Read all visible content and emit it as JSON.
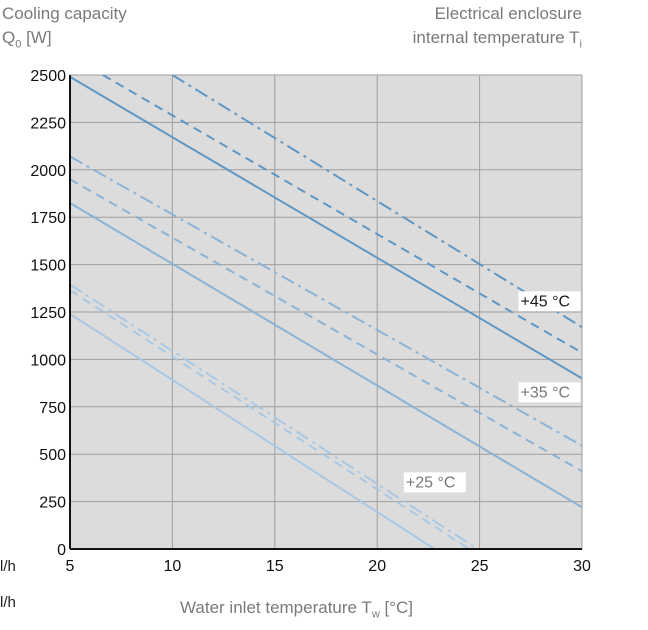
{
  "header": {
    "left_line1": "Cooling capacity",
    "left_line2_main": "Q",
    "left_line2_sub": "0",
    "left_line2_unit": " [W]",
    "right_line1": "Electrical enclosure",
    "right_line2_main": "internal temperature T",
    "right_line2_sub": "i"
  },
  "axis": {
    "xlabel_main": "Water inlet temperature T",
    "xlabel_sub": "w",
    "xlabel_unit": " [°C]",
    "unit_row1": "l/h",
    "unit_row2": "l/h"
  },
  "chart_data": {
    "type": "line",
    "xlim": [
      5,
      30
    ],
    "ylim": [
      0,
      2500
    ],
    "x_ticks": [
      5,
      10,
      15,
      20,
      25,
      30
    ],
    "y_ticks": [
      0,
      250,
      500,
      750,
      1000,
      1250,
      1500,
      1750,
      2000,
      2250,
      2500
    ],
    "grid": true,
    "groups": [
      {
        "label": "+45 °C",
        "color": "#5f97c4",
        "label_color": "#1a1a1a",
        "label_at": [
          27.0,
          1280
        ],
        "series": [
          {
            "style": "solid",
            "points": [
              [
                5,
                2490
              ],
              [
                30,
                900
              ]
            ]
          },
          {
            "style": "dashed",
            "points": [
              [
                6.6,
                2500
              ],
              [
                30,
                1035
              ]
            ]
          },
          {
            "style": "dashdot",
            "points": [
              [
                10,
                2500
              ],
              [
                30,
                1170
              ]
            ]
          }
        ]
      },
      {
        "label": "+35 °C",
        "color": "#8ab3d6",
        "label_color": "#777777",
        "label_at": [
          27.0,
          800
        ],
        "series": [
          {
            "style": "solid",
            "points": [
              [
                5,
                1825
              ],
              [
                30,
                220
              ]
            ]
          },
          {
            "style": "dashed",
            "points": [
              [
                5,
                1950
              ],
              [
                30,
                410
              ]
            ]
          },
          {
            "style": "dashdot",
            "points": [
              [
                5,
                2070
              ],
              [
                30,
                545
              ]
            ]
          }
        ]
      },
      {
        "label": "+25 °C",
        "color": "#a9c8e3",
        "label_color": "#777777",
        "label_at": [
          21.4,
          325
        ],
        "series": [
          {
            "style": "solid",
            "points": [
              [
                5,
                1240
              ],
              [
                22.8,
                0
              ]
            ]
          },
          {
            "style": "dashed",
            "points": [
              [
                5,
                1365
              ],
              [
                24.5,
                0
              ]
            ]
          },
          {
            "style": "dashdot",
            "points": [
              [
                5,
                1395
              ],
              [
                24.9,
                0
              ]
            ]
          }
        ]
      }
    ]
  }
}
